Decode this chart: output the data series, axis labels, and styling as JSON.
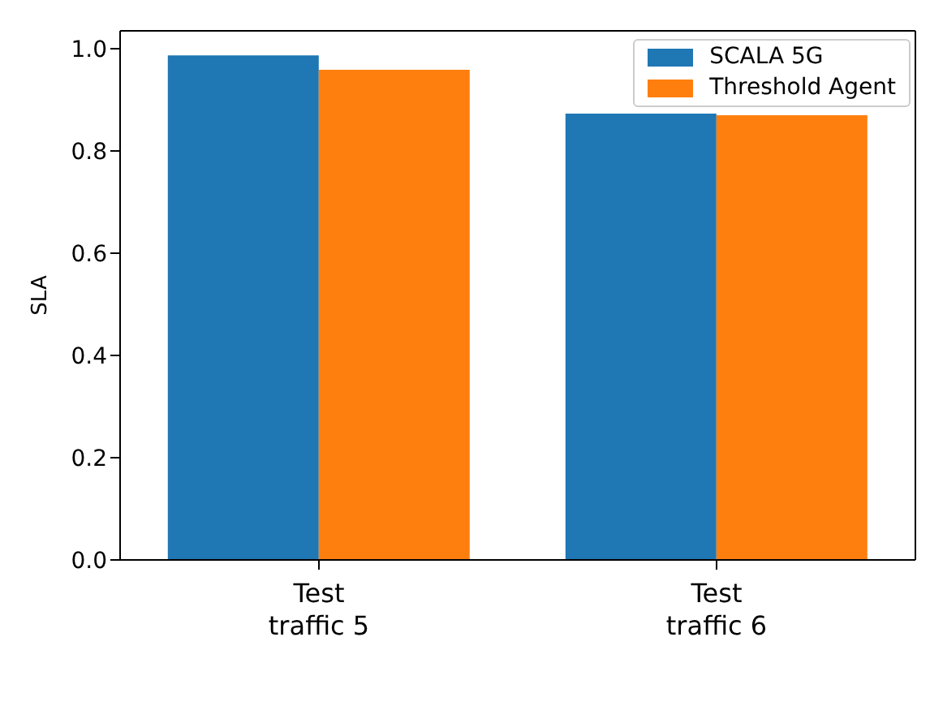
{
  "chart_data": {
    "type": "bar",
    "ylabel": "SLA",
    "categories": [
      "Test\ntraffic 5",
      "Test\ntraffic 6"
    ],
    "series": [
      {
        "name": "SCALA 5G",
        "color": "#1f77b4",
        "values": [
          0.987,
          0.873
        ]
      },
      {
        "name": "Threshold Agent",
        "color": "#ff7f0e",
        "values": [
          0.959,
          0.87
        ]
      }
    ],
    "ylim": [
      0,
      1.035
    ],
    "yticks": [
      {
        "value": 0,
        "label": "0.0"
      },
      {
        "value": 0.2,
        "label": "0.2"
      },
      {
        "value": 0.4,
        "label": "0.4"
      },
      {
        "value": 0.6,
        "label": "0.6"
      },
      {
        "value": 0.8,
        "label": "0.8"
      },
      {
        "value": 1,
        "label": "1.0"
      }
    ],
    "grid": false,
    "legend": "top right"
  }
}
